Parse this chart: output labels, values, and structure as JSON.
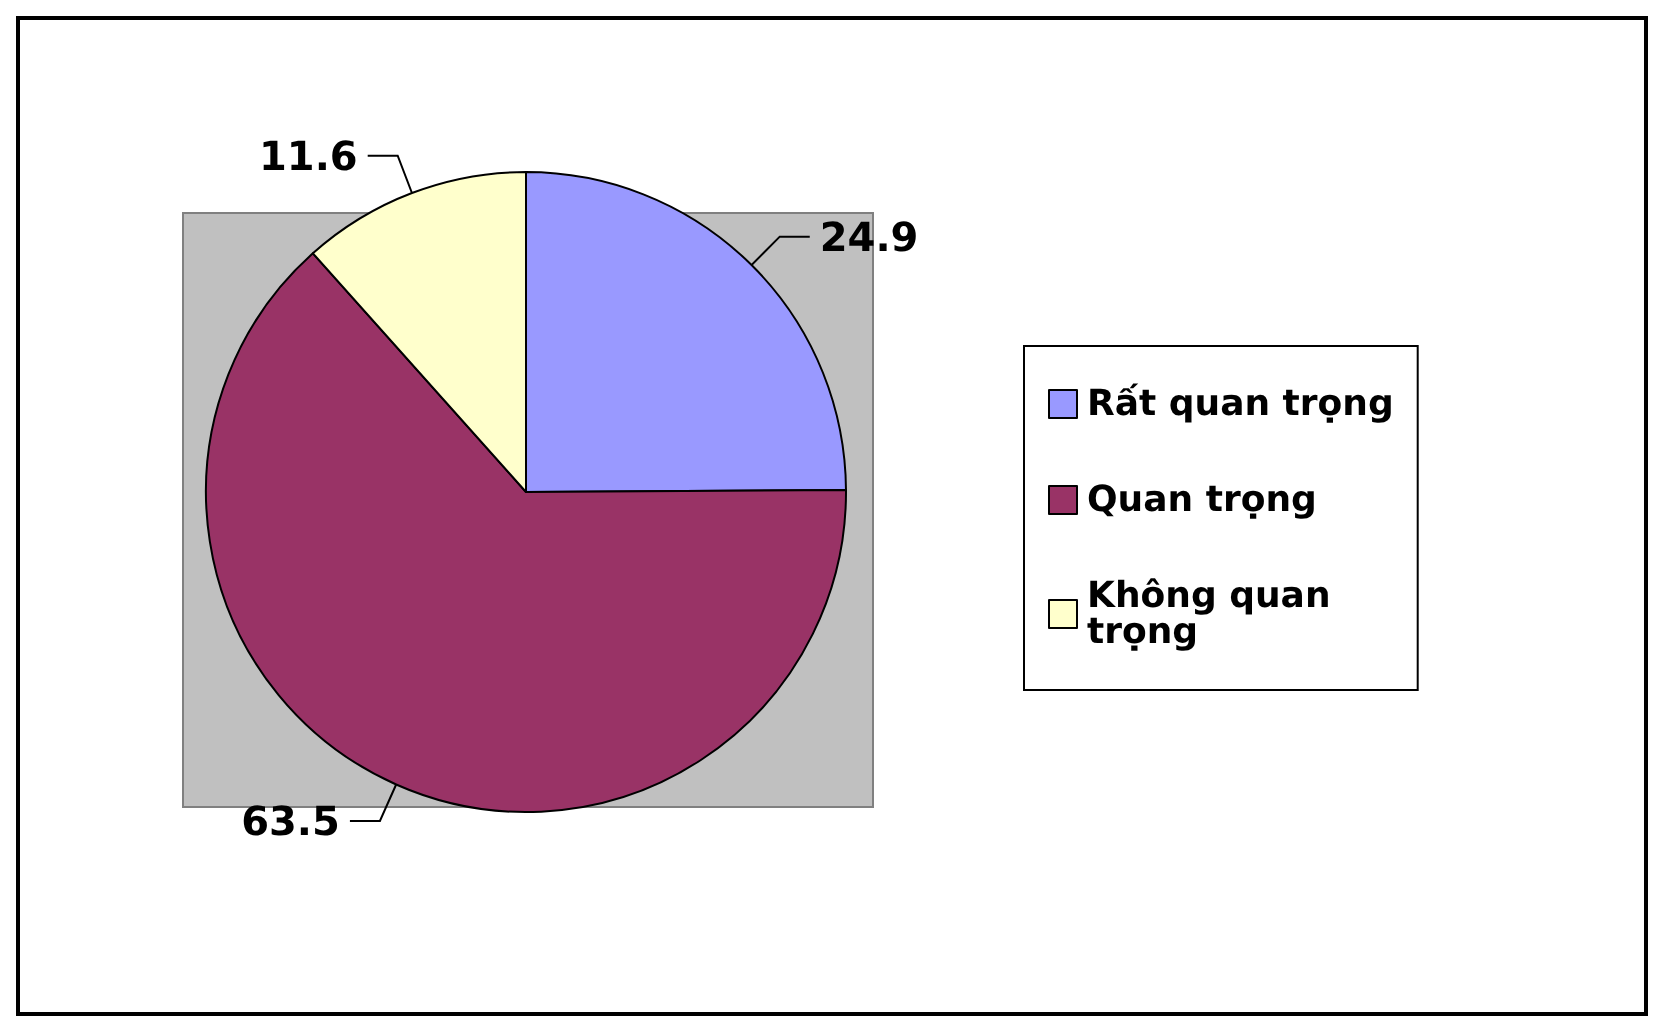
{
  "chart_data": {
    "type": "pie",
    "categories": [
      "Rất quan trọng",
      "Quan trọng",
      "Không quan trọng"
    ],
    "values": [
      24.9,
      63.5,
      11.6
    ],
    "colors": [
      "#9999ff",
      "#993366",
      "#ffffcc"
    ],
    "data_labels": true,
    "legend": "right"
  }
}
